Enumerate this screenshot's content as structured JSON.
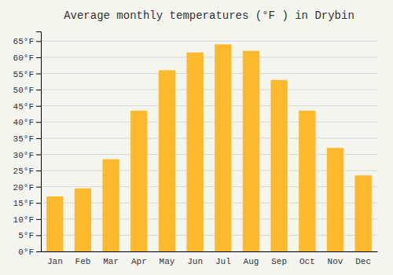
{
  "chart_data": {
    "type": "bar",
    "title": "Average monthly temperatures (°F ) in Drybin",
    "categories": [
      "Jan",
      "Feb",
      "Mar",
      "Apr",
      "May",
      "Jun",
      "Jul",
      "Aug",
      "Sep",
      "Oct",
      "Nov",
      "Dec"
    ],
    "values": [
      17,
      19.5,
      28.5,
      43.5,
      56,
      61.5,
      64,
      62,
      53,
      43.5,
      32,
      23.5
    ],
    "color": "#FDB92E",
    "ylim": [
      0,
      68
    ],
    "yticks": [
      {
        "value": 0,
        "label": "0°F"
      },
      {
        "value": 5,
        "label": "5°F"
      },
      {
        "value": 10,
        "label": "10°F"
      },
      {
        "value": 15,
        "label": "15°F"
      },
      {
        "value": 20,
        "label": "20°F"
      },
      {
        "value": 25,
        "label": "25°F"
      },
      {
        "value": 30,
        "label": "30°F"
      },
      {
        "value": 35,
        "label": "35°F"
      },
      {
        "value": 40,
        "label": "40°F"
      },
      {
        "value": 45,
        "label": "45°F"
      },
      {
        "value": 50,
        "label": "50°F"
      },
      {
        "value": 55,
        "label": "55°F"
      },
      {
        "value": 60,
        "label": "60°F"
      },
      {
        "value": 65,
        "label": "65°F"
      }
    ],
    "grid": true
  }
}
